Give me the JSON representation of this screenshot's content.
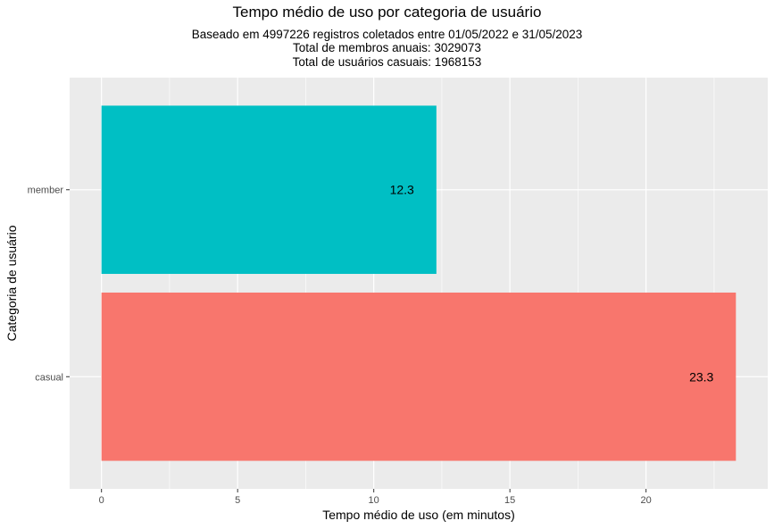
{
  "chart_data": {
    "type": "bar",
    "orientation": "horizontal",
    "title": "Tempo médio de uso por categoria de usuário",
    "subtitle": [
      "Baseado em 4997226 registros coletados entre 01/05/2022 e 31/05/2023",
      "Total de membros anuais:  3029073",
      "Total de usuários casuais:  1968153"
    ],
    "xlabel": "Tempo médio de uso (em minutos)",
    "ylabel": "Categoria de usuário",
    "categories": [
      "member",
      "casual"
    ],
    "values": [
      12.3,
      23.3
    ],
    "data_labels": [
      "12.3",
      "23.3"
    ],
    "colors": [
      "#00BFC4",
      "#F8766D"
    ],
    "xlim": [
      -1.17,
      24.47
    ],
    "xticks": [
      0,
      5,
      10,
      15,
      20
    ],
    "xtick_labels": [
      "0",
      "5",
      "10",
      "15",
      "20"
    ],
    "grid": true,
    "panel_background": "#EBEBEB",
    "gridline_color": "#FFFFFF"
  }
}
